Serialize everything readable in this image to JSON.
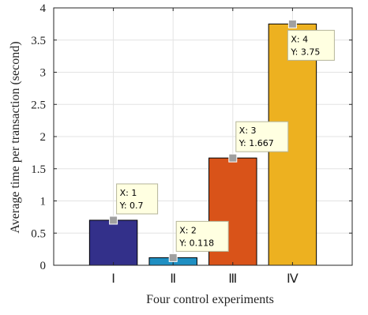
{
  "chart_data": {
    "type": "bar",
    "xlabel": "Four control experiments",
    "ylabel": "Average time per transaction (second)",
    "categories": [
      "Ⅰ",
      "Ⅱ",
      "Ⅲ",
      "Ⅳ"
    ],
    "x": [
      1,
      2,
      3,
      4
    ],
    "values": [
      0.7,
      0.118,
      1.667,
      3.75
    ],
    "colors": [
      "#33308a",
      "#1f8fc2",
      "#d95319",
      "#edb120"
    ],
    "ylim": [
      0,
      4
    ],
    "xlim": [
      0,
      5
    ],
    "yticks": [
      0,
      0.5,
      1,
      1.5,
      2,
      2.5,
      3,
      3.5,
      4
    ],
    "ytick_labels": [
      "0",
      "0.5",
      "1",
      "1.5",
      "2",
      "2.5",
      "3",
      "3.5",
      "4"
    ],
    "grid": true,
    "box": true,
    "datatips": [
      {
        "x_label": "X: 1",
        "y_label": "Y: 0.7",
        "x": 1,
        "y": 0.7,
        "side": "upper-right"
      },
      {
        "x_label": "X: 2",
        "y_label": "Y: 0.118",
        "x": 2,
        "y": 0.118,
        "side": "upper-right"
      },
      {
        "x_label": "X: 3",
        "y_label": "Y: 1.667",
        "x": 3,
        "y": 1.667,
        "side": "upper-right"
      },
      {
        "x_label": "X: 4",
        "y_label": "Y: 3.75",
        "x": 4,
        "y": 3.75,
        "side": "lower-right"
      }
    ],
    "datatip_style": {
      "fill": "#ffffe1",
      "stroke": "#b5b59a",
      "marker": "#a0a0a0"
    }
  }
}
